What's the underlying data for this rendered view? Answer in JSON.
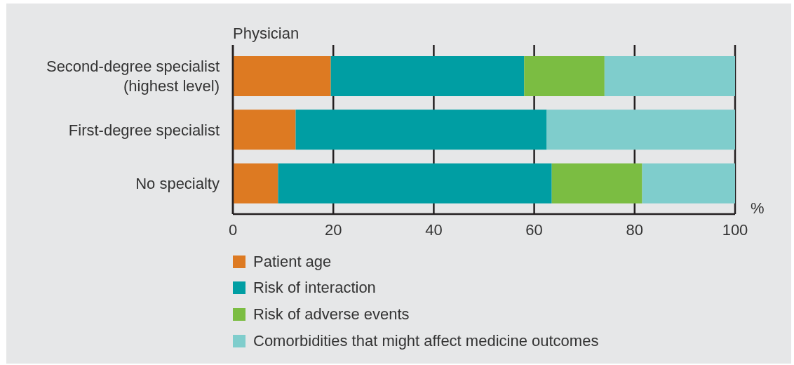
{
  "chart_data": {
    "type": "bar",
    "orientation": "horizontal",
    "stacked": true,
    "ylabel": "Physician",
    "xlabel": "%",
    "categories": [
      "Second-degree specialist (highest level)",
      "First-degree specialist",
      "No specialty"
    ],
    "series": [
      {
        "name": "Patient age",
        "color": "#dd7a22",
        "values": [
          19.5,
          12.5,
          9
        ]
      },
      {
        "name": "Risk of interaction",
        "color": "#009ea3",
        "values": [
          38.5,
          50,
          54.5
        ]
      },
      {
        "name": "Risk of adverse events",
        "color": "#7bbd42",
        "values": [
          16,
          0,
          18
        ]
      },
      {
        "name": "Comorbidities that might affect medicine outcomes",
        "color": "#7fcdcc",
        "values": [
          26,
          37.5,
          18.5
        ]
      }
    ],
    "xlim": [
      0,
      100
    ],
    "xticks": [
      0,
      20,
      40,
      60,
      80,
      100
    ],
    "grid": "x",
    "legend": "bottom"
  }
}
